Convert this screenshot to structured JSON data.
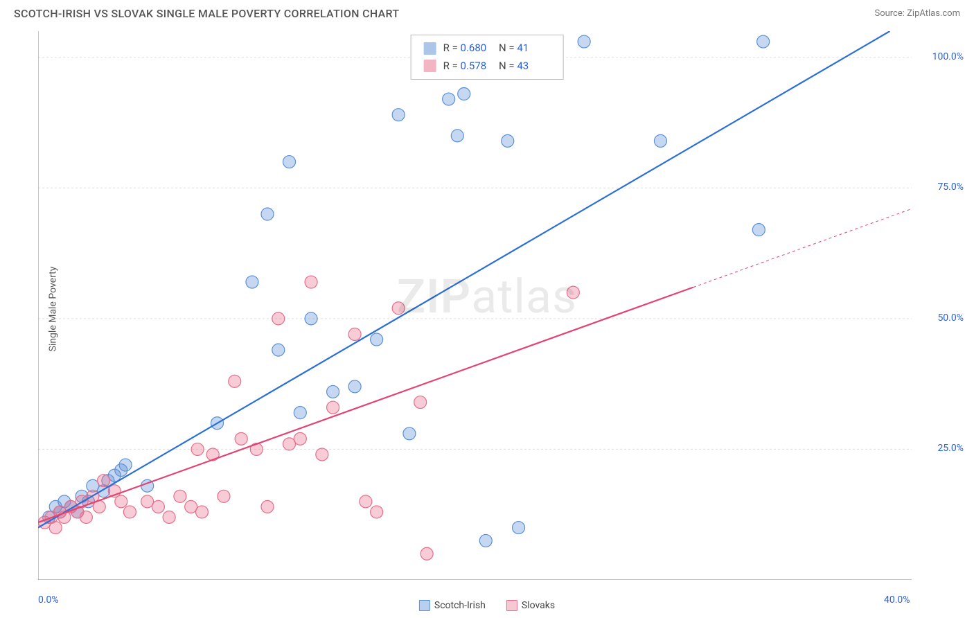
{
  "title": "SCOTCH-IRISH VS SLOVAK SINGLE MALE POVERTY CORRELATION CHART",
  "source": "Source: ZipAtlas.com",
  "watermark": "ZIPatlas",
  "y_axis_label": "Single Male Poverty",
  "chart": {
    "type": "scatter",
    "xlim": [
      0,
      40
    ],
    "ylim": [
      0,
      105
    ],
    "x_ticks": [
      {
        "val": 0,
        "label": "0.0%"
      },
      {
        "val": 40,
        "label": "40.0%"
      }
    ],
    "y_ticks": [
      {
        "val": 25,
        "label": "25.0%"
      },
      {
        "val": 50,
        "label": "50.0%"
      },
      {
        "val": 75,
        "label": "75.0%"
      },
      {
        "val": 100,
        "label": "100.0%"
      }
    ],
    "grid_color": "#dddddd",
    "background_color": "#ffffff",
    "marker_radius": 9,
    "marker_fill_opacity": 0.35,
    "marker_stroke_width": 1.2,
    "line_width": 2.2,
    "series": [
      {
        "name": "Scotch-Irish",
        "color": "#5b8fd6",
        "line_color": "#2a6fd6",
        "R": "0.680",
        "N": "41",
        "trend": {
          "x1": 0,
          "y1": 10,
          "x2": 39,
          "y2": 105
        },
        "points": [
          [
            0.5,
            12
          ],
          [
            0.8,
            14
          ],
          [
            1.0,
            13
          ],
          [
            1.2,
            15
          ],
          [
            1.5,
            14
          ],
          [
            1.8,
            13
          ],
          [
            2.0,
            16
          ],
          [
            2.3,
            15
          ],
          [
            2.5,
            18
          ],
          [
            3.0,
            17
          ],
          [
            3.2,
            19
          ],
          [
            3.5,
            20
          ],
          [
            3.8,
            21
          ],
          [
            4.0,
            22
          ],
          [
            5.0,
            18
          ],
          [
            8.2,
            30
          ],
          [
            9.8,
            57
          ],
          [
            10.5,
            70
          ],
          [
            11.0,
            44
          ],
          [
            11.5,
            80
          ],
          [
            12.0,
            32
          ],
          [
            12.5,
            50
          ],
          [
            13.5,
            36
          ],
          [
            14.5,
            37
          ],
          [
            15.5,
            46
          ],
          [
            16.5,
            89
          ],
          [
            17.0,
            28
          ],
          [
            18.8,
            92
          ],
          [
            19.2,
            85
          ],
          [
            19.5,
            93
          ],
          [
            20.5,
            7.5
          ],
          [
            21.5,
            84
          ],
          [
            22.0,
            10
          ],
          [
            25.0,
            103
          ],
          [
            28.5,
            84
          ],
          [
            33.0,
            67
          ],
          [
            33.2,
            103
          ]
        ]
      },
      {
        "name": "Slovaks",
        "color": "#e86d8a",
        "line_color": "#e24372",
        "R": "0.578",
        "N": "43",
        "trend": {
          "x1": 0,
          "y1": 11,
          "x2": 30,
          "y2": 56,
          "ext_x": 40,
          "ext_y": 71
        },
        "points": [
          [
            0.3,
            11
          ],
          [
            0.6,
            12
          ],
          [
            0.8,
            10
          ],
          [
            1.0,
            13
          ],
          [
            1.2,
            12
          ],
          [
            1.5,
            14
          ],
          [
            1.8,
            13
          ],
          [
            2.0,
            15
          ],
          [
            2.2,
            12
          ],
          [
            2.5,
            16
          ],
          [
            2.8,
            14
          ],
          [
            3.0,
            19
          ],
          [
            3.5,
            17
          ],
          [
            3.8,
            15
          ],
          [
            4.2,
            13
          ],
          [
            5.0,
            15
          ],
          [
            5.5,
            14
          ],
          [
            6.0,
            12
          ],
          [
            6.5,
            16
          ],
          [
            7.0,
            14
          ],
          [
            7.3,
            25
          ],
          [
            7.5,
            13
          ],
          [
            8.0,
            24
          ],
          [
            8.5,
            16
          ],
          [
            9.0,
            38
          ],
          [
            9.3,
            27
          ],
          [
            10.0,
            25
          ],
          [
            10.5,
            14
          ],
          [
            11.0,
            50
          ],
          [
            11.5,
            26
          ],
          [
            12.0,
            27
          ],
          [
            12.5,
            57
          ],
          [
            13.0,
            24
          ],
          [
            13.5,
            33
          ],
          [
            14.5,
            47
          ],
          [
            15.0,
            15
          ],
          [
            15.5,
            13
          ],
          [
            16.5,
            52
          ],
          [
            17.5,
            34
          ],
          [
            17.8,
            5
          ],
          [
            24.5,
            55
          ]
        ]
      }
    ]
  },
  "legend": {
    "items": [
      {
        "label": "Scotch-Irish",
        "fill": "#b8d0ef",
        "stroke": "#5b8fd6"
      },
      {
        "label": "Slovaks",
        "fill": "#f7c8d3",
        "stroke": "#e86d8a"
      }
    ]
  }
}
